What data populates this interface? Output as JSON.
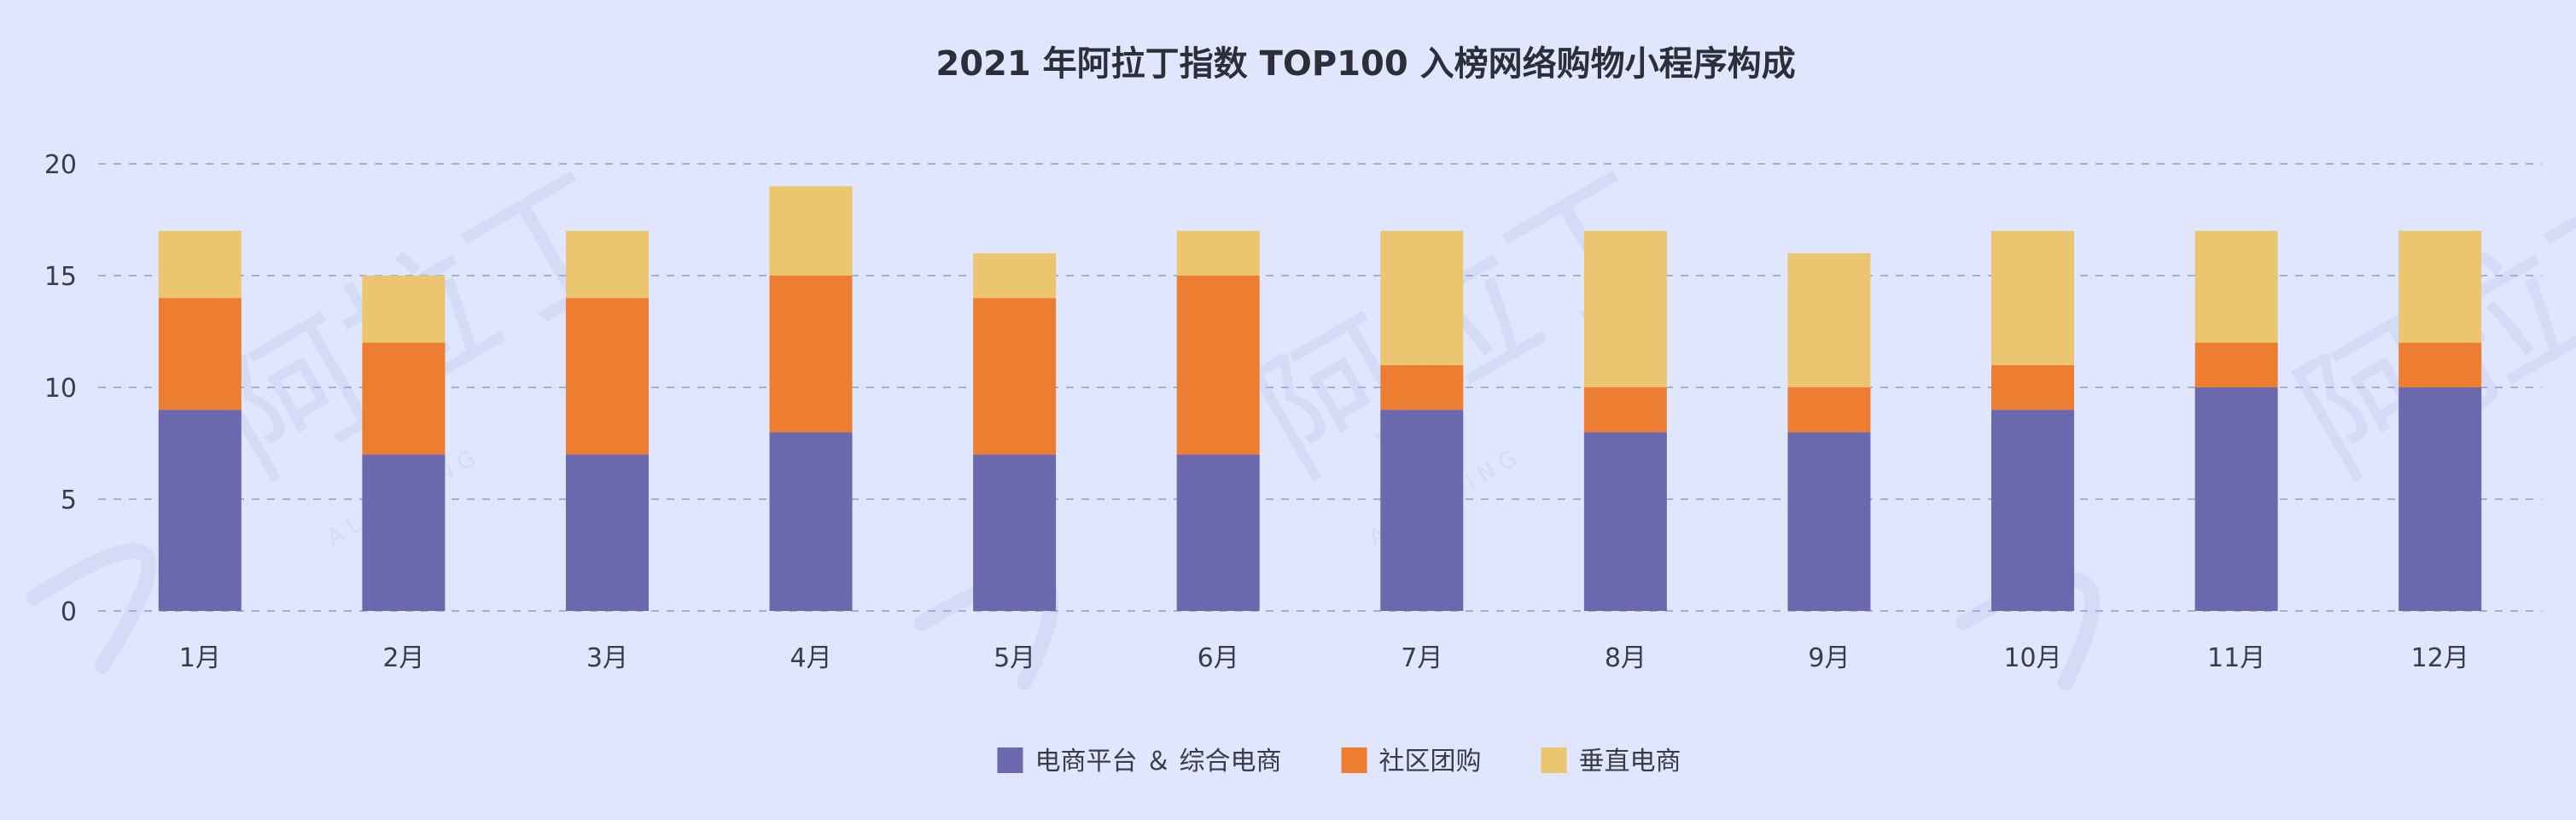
{
  "chart_data": {
    "type": "bar",
    "stacked": true,
    "title": "2021 年阿拉丁指数 TOP100 入榜网络购物小程序构成",
    "categories": [
      "1月",
      "2月",
      "3月",
      "4月",
      "5月",
      "6月",
      "7月",
      "8月",
      "9月",
      "10月",
      "11月",
      "12月"
    ],
    "series": [
      {
        "name": "电商平台 ＆ 综合电商",
        "color": "#6b68ad",
        "values": [
          9,
          7,
          7,
          8,
          7,
          7,
          9,
          8,
          8,
          9,
          10,
          10
        ]
      },
      {
        "name": "社区团购",
        "color": "#ed7d31",
        "values": [
          5,
          5,
          7,
          7,
          7,
          8,
          2,
          2,
          2,
          2,
          2,
          2
        ]
      },
      {
        "name": "垂直电商",
        "color": "#ecc571",
        "values": [
          3,
          3,
          3,
          4,
          2,
          2,
          6,
          7,
          6,
          6,
          5,
          5
        ]
      }
    ],
    "ylim": [
      0,
      20
    ],
    "yticks": [
      "0",
      "5",
      "10",
      "15",
      "20"
    ],
    "grid": true,
    "legend_position": "bottom"
  },
  "watermark": {
    "text": "阿拉丁",
    "subtext": "A L A D D I N G"
  }
}
